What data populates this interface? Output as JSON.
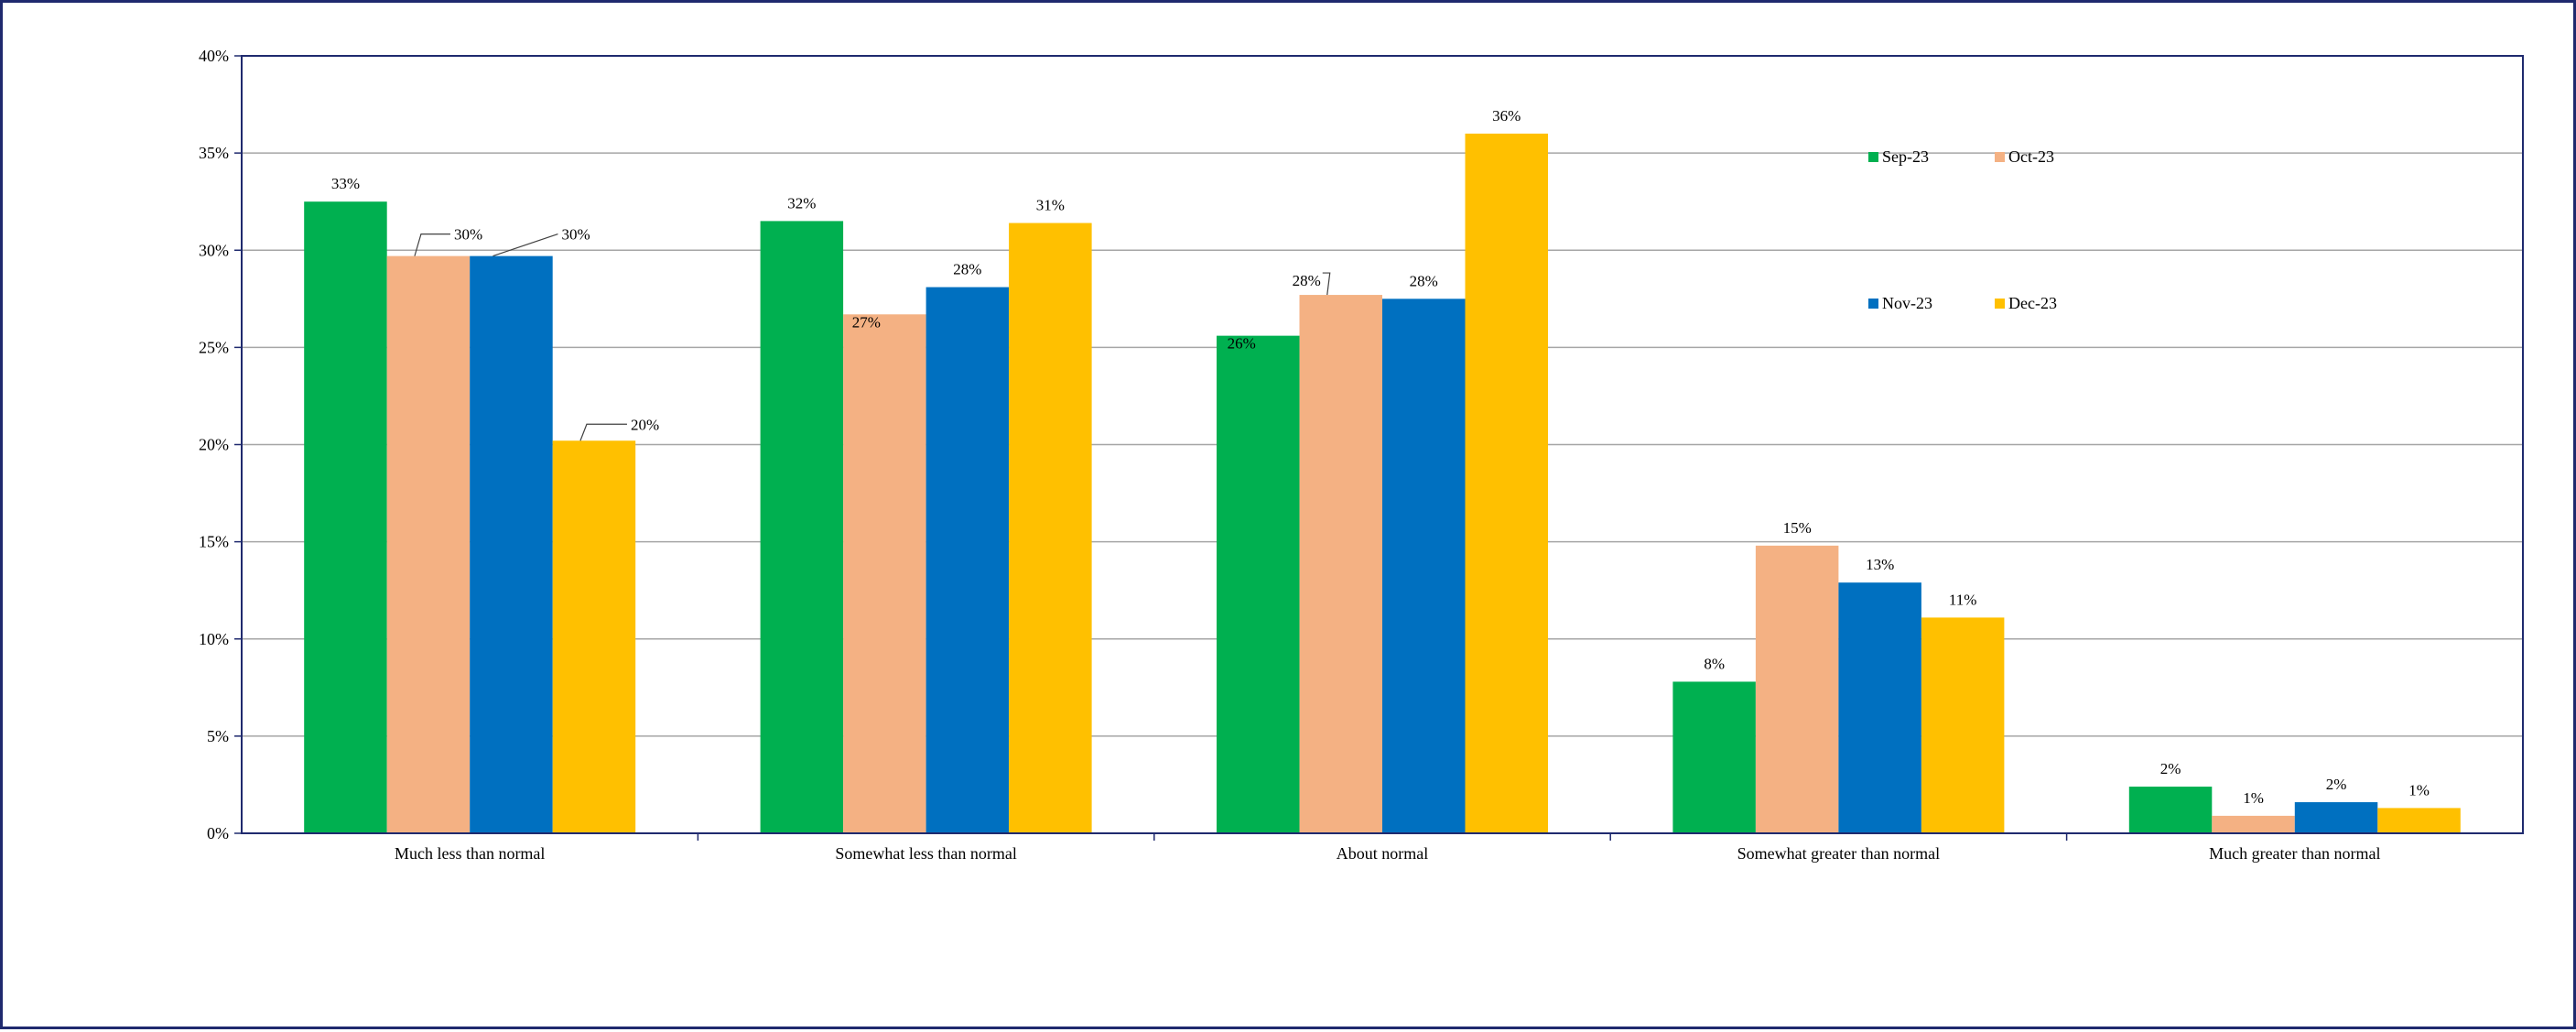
{
  "chart_data": {
    "type": "bar",
    "categories": [
      "Much less than normal",
      "Somewhat less than normal",
      "About normal",
      "Somewhat greater than normal",
      "Much greater than normal"
    ],
    "series": [
      {
        "name": "Sep-23",
        "color": "#00b050",
        "values": [
          32.5,
          31.5,
          25.6,
          7.8,
          2.4
        ],
        "labels": [
          "33%",
          "32%",
          "26%",
          "8%",
          "2%"
        ]
      },
      {
        "name": "Oct-23",
        "color": "#f4b183",
        "values": [
          29.7,
          26.7,
          27.7,
          14.8,
          0.9
        ],
        "labels": [
          "30%",
          "27%",
          "28%",
          "15%",
          "1%"
        ]
      },
      {
        "name": "Nov-23",
        "color": "#0070c0",
        "values": [
          29.7,
          28.1,
          27.5,
          12.9,
          1.6
        ],
        "labels": [
          "30%",
          "28%",
          "28%",
          "13%",
          "2%"
        ]
      },
      {
        "name": "Dec-23",
        "color": "#ffc000",
        "values": [
          20.2,
          31.4,
          36.0,
          11.1,
          1.3
        ],
        "labels": [
          "20%",
          "31%",
          "36%",
          "11%",
          "1%"
        ]
      }
    ],
    "ylim": [
      0,
      40
    ],
    "yticks": [
      0,
      5,
      10,
      15,
      20,
      25,
      30,
      35,
      40
    ],
    "ytick_labels": [
      "0%",
      "5%",
      "10%",
      "15%",
      "20%",
      "25%",
      "30%",
      "35%",
      "40%"
    ],
    "grid": true,
    "legend_position": "upper-right inside plot, 2x2",
    "title": "",
    "xlabel": "",
    "ylabel": ""
  }
}
